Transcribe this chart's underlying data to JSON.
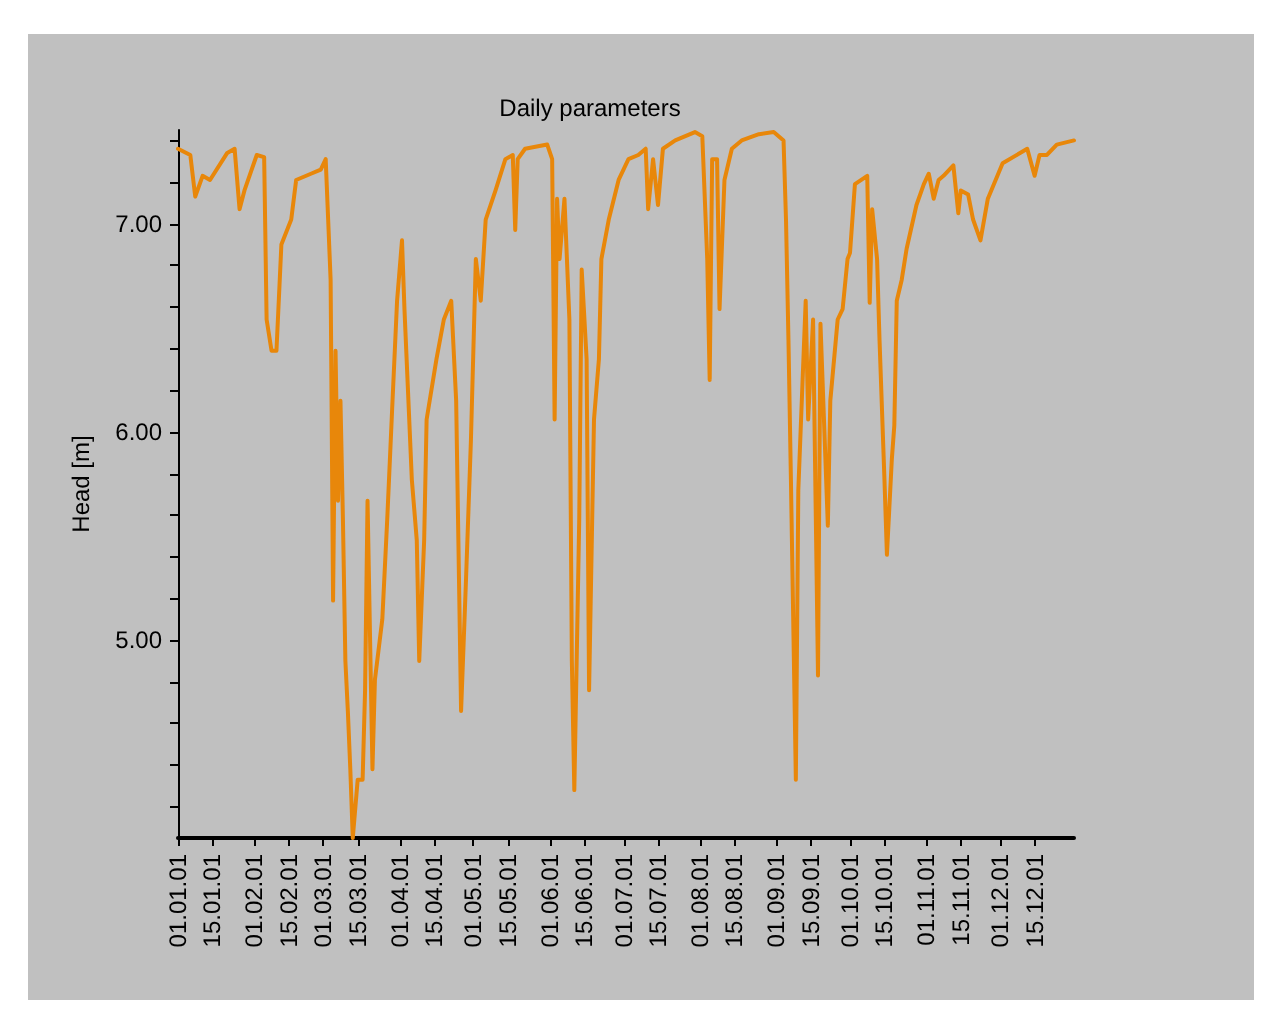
{
  "chart_data": {
    "type": "line",
    "title": "Daily parameters",
    "ylabel": "Head [m]",
    "x": [
      "--01-01",
      "--01-06",
      "--01-08",
      "--01-11",
      "--01-14",
      "--01-21",
      "--01-24",
      "--01-26",
      "--01-28",
      "--02-02",
      "--02-05",
      "--02-06",
      "--02-08",
      "--02-10",
      "--02-12",
      "--02-16",
      "--02-18",
      "--02-24",
      "--02-28",
      "--03-02",
      "--03-03",
      "--03-04",
      "--03-05",
      "--03-06",
      "--03-07",
      "--03-08",
      "--03-09",
      "--03-10",
      "--03-11",
      "--03-12",
      "--03-13",
      "--03-15",
      "--03-17",
      "--03-18",
      "--03-19",
      "--03-21",
      "--03-22",
      "--03-25",
      "--03-27",
      "--03-29",
      "--03-31",
      "--04-02",
      "--04-03",
      "--04-06",
      "--04-08",
      "--04-09",
      "--04-11",
      "--04-12",
      "--04-16",
      "--04-19",
      "--04-22",
      "--04-24",
      "--04-26",
      "--04-28",
      "--04-30",
      "--05-02",
      "--05-04",
      "--05-06",
      "--05-10",
      "--05-14",
      "--05-17",
      "--05-18",
      "--05-19",
      "--05-22",
      "--05-31",
      "--06-02",
      "--06-03",
      "--06-04",
      "--06-05",
      "--06-07",
      "--06-09",
      "--06-10",
      "--06-11",
      "--06-13",
      "--06-14",
      "--06-16",
      "--06-17",
      "--06-19",
      "--06-21",
      "--06-22",
      "--06-25",
      "--06-29",
      "--07-03",
      "--07-07",
      "--07-10",
      "--07-11",
      "--07-13",
      "--07-15",
      "--07-17",
      "--07-22",
      "--07-30",
      "--08-02",
      "--08-04",
      "--08-05",
      "--08-06",
      "--08-08",
      "--08-09",
      "--08-11",
      "--08-14",
      "--08-18",
      "--08-25",
      "--08-31",
      "--09-04",
      "--09-05",
      "--09-06",
      "--09-07",
      "--09-09",
      "--09-10",
      "--09-13",
      "--09-14",
      "--09-16",
      "--09-18",
      "--09-19",
      "--09-22",
      "--09-23",
      "--09-26",
      "--09-28",
      "--09-30",
      "--10-01",
      "--10-03",
      "--10-08",
      "--10-09",
      "--10-10",
      "--10-12",
      "--10-13",
      "--10-15",
      "--10-16",
      "--10-18",
      "--10-19",
      "--10-20",
      "--10-22",
      "--10-24",
      "--10-28",
      "--10-31",
      "--11-02",
      "--11-04",
      "--11-06",
      "--11-08",
      "--11-12",
      "--11-14",
      "--11-15",
      "--11-18",
      "--11-20",
      "--11-23",
      "--11-26",
      "--12-02",
      "--12-12",
      "--12-15",
      "--12-17",
      "--12-20",
      "--12-24",
      "--12-31"
    ],
    "series": [
      {
        "color": "#e8870a",
        "values": [
          7.36,
          7.33,
          7.13,
          7.23,
          7.21,
          7.34,
          7.36,
          7.07,
          7.16,
          7.33,
          7.32,
          6.54,
          6.39,
          6.39,
          6.9,
          7.02,
          7.21,
          7.24,
          7.26,
          7.31,
          7.02,
          6.73,
          5.19,
          6.39,
          5.67,
          6.15,
          5.58,
          4.9,
          4.66,
          4.38,
          4.05,
          4.33,
          4.33,
          4.76,
          5.67,
          4.38,
          4.81,
          5.1,
          5.58,
          6.11,
          6.63,
          6.92,
          6.59,
          5.77,
          5.48,
          4.9,
          5.48,
          6.06,
          6.35,
          6.54,
          6.63,
          6.15,
          4.66,
          5.29,
          5.96,
          6.83,
          6.63,
          7.02,
          7.16,
          7.31,
          7.33,
          6.97,
          7.31,
          7.36,
          7.38,
          7.31,
          6.06,
          7.12,
          6.83,
          7.12,
          6.54,
          4.9,
          4.28,
          5.58,
          6.78,
          6.35,
          4.76,
          6.06,
          6.35,
          6.83,
          7.02,
          7.21,
          7.31,
          7.33,
          7.36,
          7.07,
          7.31,
          7.09,
          7.36,
          7.4,
          7.44,
          7.42,
          6.83,
          6.25,
          7.31,
          7.31,
          6.59,
          7.21,
          7.36,
          7.4,
          7.43,
          7.44,
          7.4,
          7.02,
          6.44,
          5.77,
          4.33,
          5.72,
          6.63,
          6.06,
          6.54,
          4.83,
          6.52,
          5.55,
          6.15,
          6.54,
          6.59,
          6.83,
          6.86,
          7.19,
          7.23,
          6.62,
          7.07,
          6.83,
          6.44,
          5.77,
          5.41,
          5.87,
          6.03,
          6.63,
          6.73,
          6.88,
          7.09,
          7.19,
          7.24,
          7.12,
          7.21,
          7.23,
          7.28,
          7.05,
          7.16,
          7.14,
          7.02,
          6.92,
          7.12,
          7.29,
          7.36,
          7.23,
          7.33,
          7.33,
          7.38,
          7.4
        ]
      }
    ],
    "xlim": [
      "--01-01",
      "--12-31"
    ],
    "xticks": [
      {
        "value": "--01-01",
        "label": "01.01.01"
      },
      {
        "value": "--01-15",
        "label": "15.01.01"
      },
      {
        "value": "--02-01",
        "label": "01.02.01"
      },
      {
        "value": "--02-15",
        "label": "15.02.01"
      },
      {
        "value": "--03-01",
        "label": "01.03.01"
      },
      {
        "value": "--03-15",
        "label": "15.03.01"
      },
      {
        "value": "--04-01",
        "label": "01.04.01"
      },
      {
        "value": "--04-15",
        "label": "15.04.01"
      },
      {
        "value": "--05-01",
        "label": "01.05.01"
      },
      {
        "value": "--05-15",
        "label": "15.05.01"
      },
      {
        "value": "--06-01",
        "label": "01.06.01"
      },
      {
        "value": "--06-15",
        "label": "15.06.01"
      },
      {
        "value": "--07-01",
        "label": "01.07.01"
      },
      {
        "value": "--07-15",
        "label": "15.07.01"
      },
      {
        "value": "--08-01",
        "label": "01.08.01"
      },
      {
        "value": "--08-15",
        "label": "15.08.01"
      },
      {
        "value": "--09-01",
        "label": "01.09.01"
      },
      {
        "value": "--09-15",
        "label": "15.09.01"
      },
      {
        "value": "--10-01",
        "label": "01.10.01"
      },
      {
        "value": "--10-15",
        "label": "15.10.01"
      },
      {
        "value": "--11-01",
        "label": "01.11.01"
      },
      {
        "value": "--11-15",
        "label": "15.11.01"
      },
      {
        "value": "--12-01",
        "label": "01.12.01"
      },
      {
        "value": "--12-15",
        "label": "15.12.01"
      }
    ],
    "ylim": [
      4.05,
      7.45
    ],
    "yticks": [
      {
        "value": 4.2,
        "label": null
      },
      {
        "value": 4.4,
        "label": null
      },
      {
        "value": 4.6,
        "label": null
      },
      {
        "value": 4.8,
        "label": null
      },
      {
        "value": 5,
        "label": "5.00"
      },
      {
        "value": 5.2,
        "label": null
      },
      {
        "value": 5.4,
        "label": null
      },
      {
        "value": 5.6,
        "label": null
      },
      {
        "value": 5.8,
        "label": null
      },
      {
        "value": 6,
        "label": "6.00"
      },
      {
        "value": 6.2,
        "label": null
      },
      {
        "value": 6.4,
        "label": null
      },
      {
        "value": 6.6,
        "label": null
      },
      {
        "value": 6.8,
        "label": null
      },
      {
        "value": 7,
        "label": "7.00"
      },
      {
        "value": 7.2,
        "label": null
      },
      {
        "value": 7.4,
        "label": null
      }
    ],
    "line_style": "solid"
  }
}
